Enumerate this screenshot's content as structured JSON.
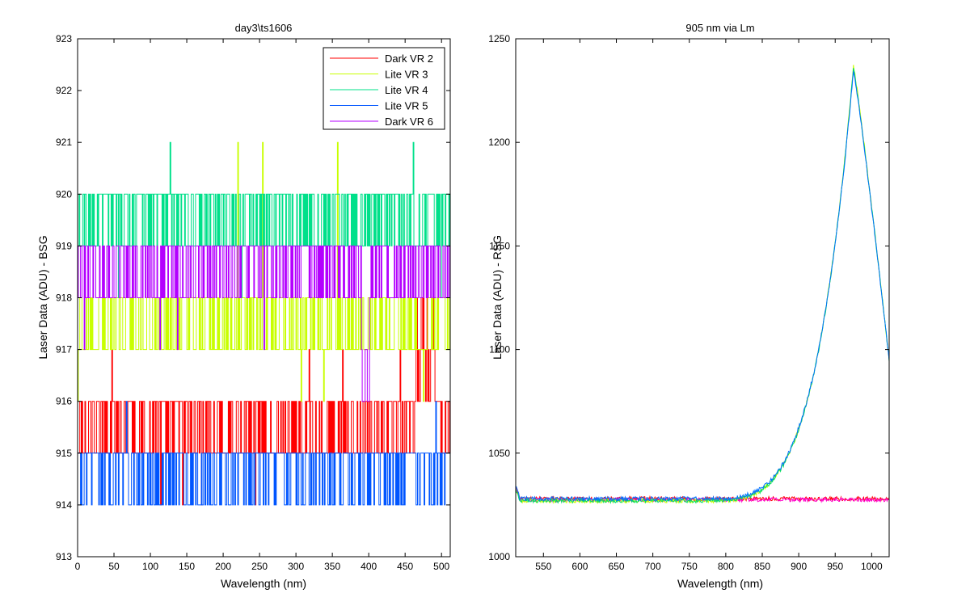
{
  "chart_data": [
    {
      "type": "line",
      "title": "day3\\ts1606",
      "xlabel": "Wavelength (nm)",
      "ylabel": "Laser Data (ADU) - BSG",
      "xlim": [
        0,
        512
      ],
      "ylim": [
        913,
        923
      ],
      "xticks": [
        0,
        50,
        100,
        150,
        200,
        250,
        300,
        350,
        400,
        450,
        500
      ],
      "yticks": [
        913,
        914,
        915,
        916,
        917,
        918,
        919,
        920,
        921,
        922,
        923
      ],
      "legend_position": "top-right",
      "series": [
        {
          "name": "Dark VR 2",
          "color": "#ff0000",
          "base": 915,
          "jump": 916,
          "jump_prob": 0.45,
          "rare_low": 914,
          "rare_high": 917
        },
        {
          "name": "Lite VR 3",
          "color": "#c8ff00",
          "base": 917,
          "jump": 918,
          "jump_prob": 0.5,
          "rare_low": 916,
          "rare_high": 921
        },
        {
          "name": "Lite VR 4",
          "color": "#00e08a",
          "base": 919,
          "jump": 920,
          "jump_prob": 0.55,
          "rare_low": 918,
          "rare_high": 921
        },
        {
          "name": "Lite VR 5",
          "color": "#0055ff",
          "base": 915,
          "jump": 914,
          "jump_prob": 0.35,
          "rare_low": 914,
          "rare_high": 916
        },
        {
          "name": "Dark VR 6",
          "color": "#b400ff",
          "base": 918,
          "jump": 919,
          "jump_prob": 0.55,
          "rare_low": 917,
          "rare_high": 919
        }
      ]
    },
    {
      "type": "line",
      "title": "905 nm via Lm",
      "xlabel": "Wavelength (nm)",
      "ylabel": "Laser Data (ADU) - RSG",
      "xlim": [
        512,
        1024
      ],
      "ylim": [
        1000,
        1250
      ],
      "xticks": [
        550,
        600,
        650,
        700,
        750,
        800,
        850,
        900,
        950,
        1000
      ],
      "yticks": [
        1000,
        1050,
        1100,
        1150,
        1200,
        1250
      ],
      "series": [
        {
          "color": "#ff0000",
          "shape": "flat",
          "level": 1028
        },
        {
          "color": "#ff00cc",
          "shape": "flat",
          "level": 1027.5
        },
        {
          "color": "#ccff00",
          "shape": "peak",
          "level": 1027,
          "peak_x": 975,
          "peak_y": 1237
        },
        {
          "color": "#00dd66",
          "shape": "peak",
          "level": 1027,
          "peak_x": 975,
          "peak_y": 1236
        },
        {
          "color": "#0070ff",
          "shape": "peak",
          "level": 1028,
          "peak_x": 975,
          "peak_y": 1235
        }
      ]
    }
  ]
}
